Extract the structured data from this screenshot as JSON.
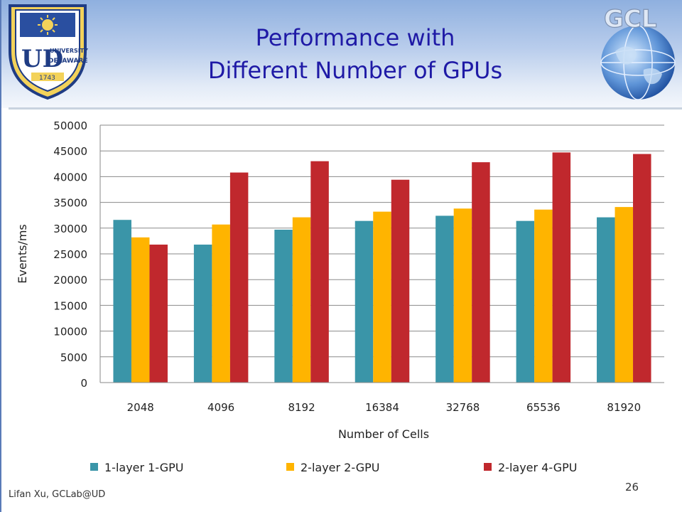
{
  "slide": {
    "title_line1": "Performance with",
    "title_line2": "Different Number of GPUs",
    "footer_text": "Lifan Xu, GCLab@UD",
    "page_number": "26",
    "logos": {
      "left": {
        "name": "university-of-delaware-seal",
        "text_top": "UNIVERSITY OF",
        "text_bottom": "DELAWARE",
        "year": "1743"
      },
      "right": {
        "name": "gcl-globe-logo",
        "text": "GCL"
      }
    },
    "colors": {
      "title": "#1f1aa6",
      "header_top": "#8fb0df"
    }
  },
  "chart_data": {
    "type": "bar",
    "title": "",
    "xlabel": "Number of Cells",
    "ylabel": "Events/ms",
    "ylim": [
      0,
      50000
    ],
    "yticks": [
      0,
      5000,
      10000,
      15000,
      20000,
      25000,
      30000,
      35000,
      40000,
      45000,
      50000
    ],
    "ytick_labels": [
      "0",
      "5000",
      "10000",
      "15000",
      "20000",
      "25000",
      "30000",
      "35000",
      "40000",
      "45000",
      "50000"
    ],
    "grid": true,
    "legend_position": "bottom",
    "categories": [
      "2048",
      "4096",
      "8192",
      "16384",
      "32768",
      "65536",
      "81920"
    ],
    "series": [
      {
        "name": "1-layer 1-GPU",
        "color": "#3a95a8",
        "values": [
          31600,
          26800,
          29700,
          31400,
          32400,
          31400,
          32100
        ]
      },
      {
        "name": "2-layer 2-GPU",
        "color": "#ffb400",
        "values": [
          28200,
          30700,
          32100,
          33200,
          33800,
          33600,
          34100
        ]
      },
      {
        "name": "2-layer 4-GPU",
        "color": "#c0282d",
        "values": [
          26800,
          40800,
          43000,
          39400,
          42800,
          44700,
          44400
        ]
      }
    ]
  }
}
